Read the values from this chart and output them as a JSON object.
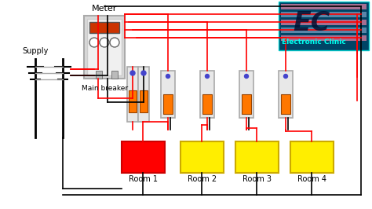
{
  "bg_color": "#ffffff",
  "supply_label": "Supply",
  "meter_label": "Meter",
  "main_breaker_label": "Main breaker",
  "ec_label": "Electronic Clinic",
  "room_labels": [
    "Room 1",
    "Room 2",
    "Room 3",
    "Room 4"
  ],
  "room_colors": [
    "#ff0000",
    "#ffee00",
    "#ffee00",
    "#ffee00"
  ],
  "wire_red": "#ff0000",
  "wire_black": "#000000",
  "wire_gray": "#aaaaaa",
  "ec_bg": "#005577",
  "ec_stripe1": "#ff88aa",
  "ec_stripe2": "#88aacc",
  "ec_text": "#00ffee",
  "breaker_body": "#e8e8e8",
  "breaker_edge": "#aaaaaa",
  "breaker_orange": "#ff7700",
  "meter_body": "#d8d8d8",
  "meter_edge": "#aaaaaa"
}
